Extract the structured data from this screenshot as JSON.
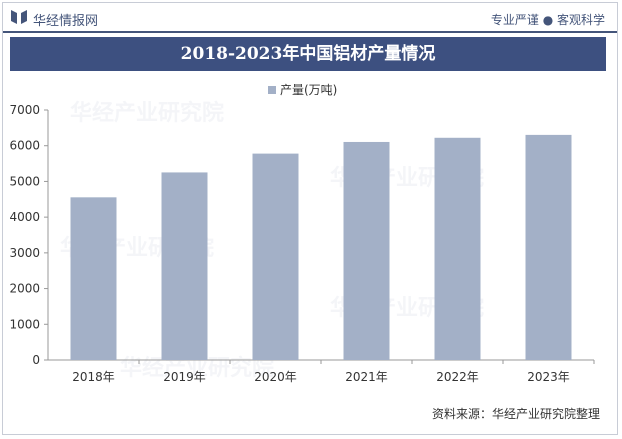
{
  "header": {
    "brand": "华经情报网",
    "tagline": "专业严谨 ● 客观科学"
  },
  "colors": {
    "accent": "#3d5080",
    "bar": "#a3b0c7",
    "axis": "#999999"
  },
  "chart_data": {
    "type": "bar",
    "title": "2018-2023年中国铝材产量情况",
    "legend": "产量(万吨)",
    "legend_position": "top-center",
    "categories": [
      "2018年",
      "2019年",
      "2020年",
      "2021年",
      "2022年",
      "2023年"
    ],
    "series": [
      {
        "name": "产量(万吨)",
        "values": [
          4555,
          5252,
          5779,
          6105,
          6222,
          6303
        ]
      }
    ],
    "yticks": [
      0,
      1000,
      2000,
      3000,
      4000,
      5000,
      6000,
      7000
    ],
    "ylim": [
      0,
      7000
    ],
    "xlabel": "",
    "ylabel": "",
    "grid": false
  },
  "footer": {
    "source": "资料来源：华经产业研究院整理"
  },
  "watermark": {
    "text": "华经产业研究院"
  }
}
